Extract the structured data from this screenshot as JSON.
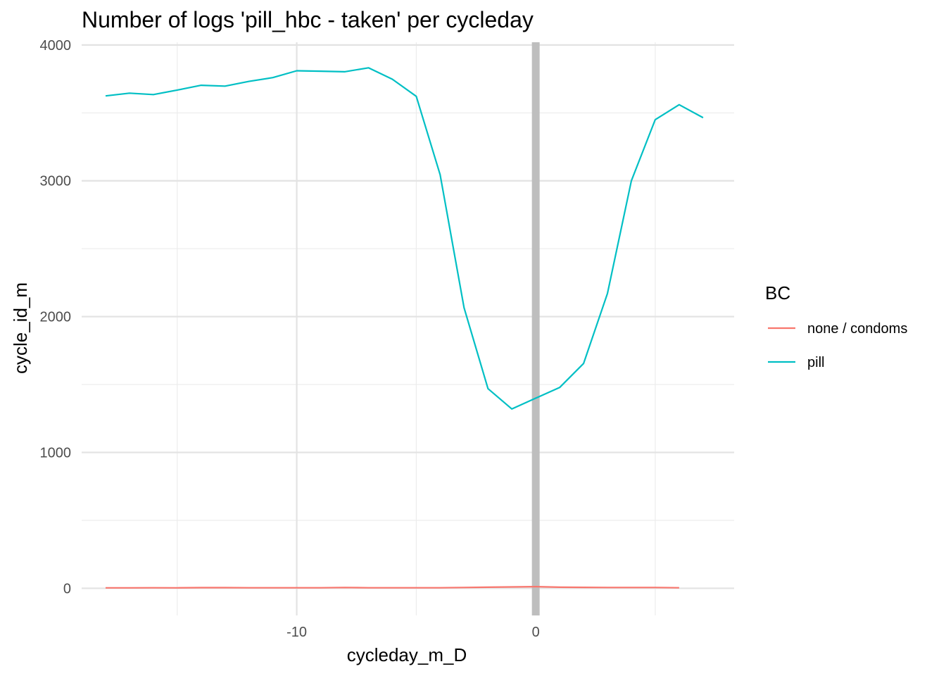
{
  "chart_data": {
    "type": "line",
    "title": "Number of logs 'pill_hbc - taken' per cycleday",
    "xlabel": "cycleday_m_D",
    "ylabel": "cycle_id_m",
    "xlim": [
      -19,
      8.3
    ],
    "ylim": [
      -200,
      4020
    ],
    "x_ticks": [
      -10,
      0
    ],
    "y_ticks": [
      0,
      1000,
      2000,
      3000,
      4000
    ],
    "x_minor_grid": [
      -15,
      -5,
      5
    ],
    "y_minor_grid": [
      500,
      1500,
      2500,
      3500
    ],
    "grid": true,
    "reference_line": {
      "x": 0,
      "color": "#bebebe"
    },
    "legend": {
      "title": "BC",
      "placement": "right"
    },
    "series": [
      {
        "name": "none / condoms",
        "color": "#F8766D",
        "x": [
          -18,
          -17,
          -16,
          -15,
          -14,
          -13,
          -12,
          -11,
          -10,
          -9,
          -8,
          -7,
          -6,
          -5,
          -4,
          -3,
          -2,
          -1,
          0,
          1,
          2,
          3,
          4,
          5,
          6
        ],
        "values": [
          3,
          3,
          4,
          3,
          5,
          5,
          4,
          4,
          4,
          4,
          6,
          4,
          4,
          4,
          4,
          6,
          8,
          10,
          12,
          8,
          7,
          6,
          6,
          6,
          4
        ]
      },
      {
        "name": "pill",
        "color": "#00BFC4",
        "x": [
          -18,
          -17,
          -16,
          -15,
          -14,
          -13,
          -12,
          -11,
          -10,
          -9,
          -8,
          -7,
          -6,
          -5,
          -4,
          -3,
          -2,
          -1,
          0,
          1,
          2,
          3,
          4,
          5,
          6,
          7
        ],
        "values": [
          3625,
          3645,
          3635,
          3668,
          3703,
          3697,
          3732,
          3760,
          3810,
          3807,
          3803,
          3832,
          3748,
          3622,
          3045,
          2065,
          1470,
          1320,
          1400,
          1478,
          1655,
          2170,
          3000,
          3450,
          3560,
          3465
        ]
      }
    ]
  }
}
